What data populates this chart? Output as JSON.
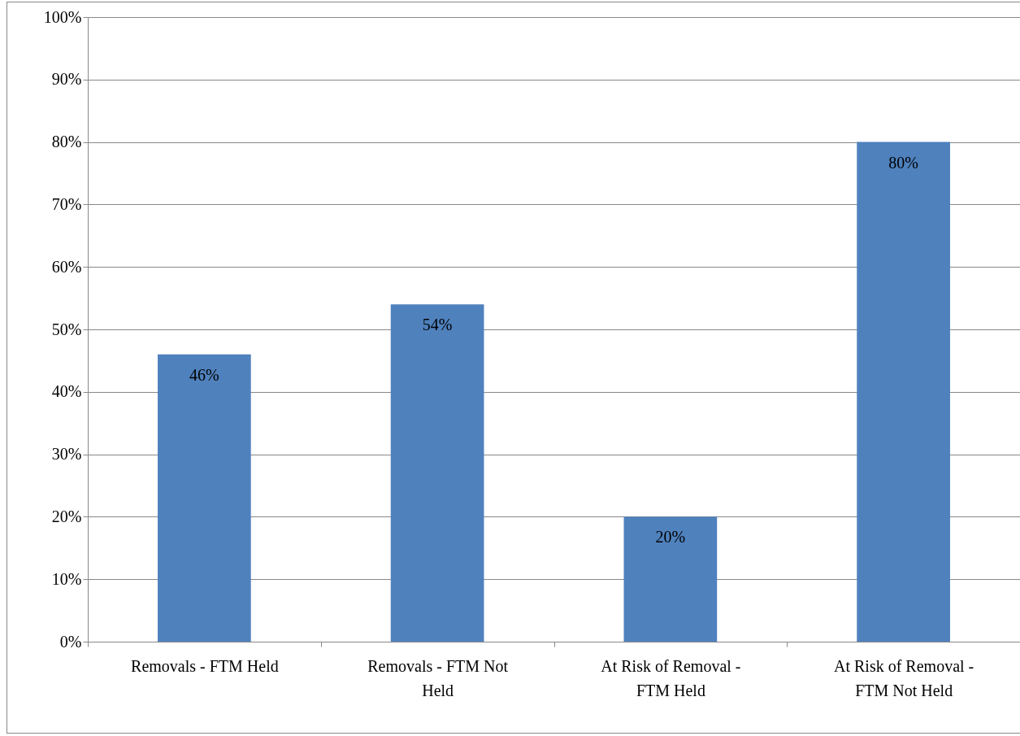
{
  "chart_data": {
    "type": "bar",
    "categories": [
      "Removals - FTM Held",
      "Removals - FTM Not Held",
      "At Risk of Removal - FTM Held",
      "At Risk of Removal - FTM Not Held"
    ],
    "values": [
      46,
      54,
      20,
      80
    ],
    "value_labels": [
      "46%",
      "54%",
      "20%",
      "80%"
    ],
    "color": "#4f81bd",
    "ylim": [
      0,
      100
    ],
    "yticks": [
      {
        "value": 0,
        "label": "0%"
      },
      {
        "value": 10,
        "label": "10%"
      },
      {
        "value": 20,
        "label": "20%"
      },
      {
        "value": 30,
        "label": "30%"
      },
      {
        "value": 40,
        "label": "40%"
      },
      {
        "value": 50,
        "label": "50%"
      },
      {
        "value": 60,
        "label": "60%"
      },
      {
        "value": 70,
        "label": "70%"
      },
      {
        "value": 80,
        "label": "80%"
      },
      {
        "value": 90,
        "label": "90%"
      },
      {
        "value": 100,
        "label": "100%"
      }
    ],
    "grid": "y"
  }
}
